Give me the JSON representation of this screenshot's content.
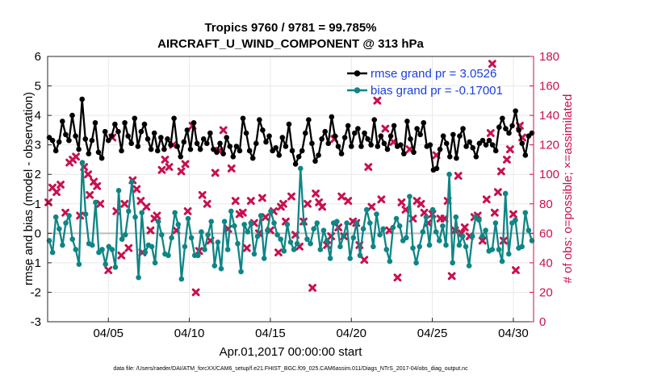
{
  "chart_data": {
    "type": "line",
    "title": "Tropics 9760 / 9781 = 99.785%",
    "subtitle": "AIRCRAFT_U_WIND_COMPONENT @ 313 hPa",
    "xlabel": "Apr.01,2017 00:00:00 start",
    "ylabel": "rmse and bias (model - observation)",
    "ylabel_right": "# of obs: o=possible; ×=assimilated",
    "footnote": "data file: /Users/raeder/DAI/ATM_forcXX/CAM6_setup/f.e21.FHIST_BGC.f09_025.CAM6assim.011/Diags_NTrS_2017-04/obs_diag_output.nc",
    "x_tick_labels": [
      "04/05",
      "04/10",
      "04/15",
      "04/20",
      "04/25",
      "04/30"
    ],
    "x_tick_days": [
      5,
      10,
      15,
      20,
      25,
      30
    ],
    "xlim_days": [
      1.25,
      31.25
    ],
    "ylim": [
      -3,
      6
    ],
    "y_ticks": [
      -3,
      -2,
      -1,
      0,
      1,
      2,
      3,
      4,
      5,
      6
    ],
    "ylim_right": [
      0,
      180
    ],
    "y_ticks_right": [
      0,
      20,
      40,
      60,
      80,
      100,
      120,
      140,
      160,
      180
    ],
    "grid": true,
    "legend_position": "top-right",
    "series": [
      {
        "name": "rmse grand pr = 3.0526",
        "axis": "left",
        "color": "#000000",
        "values": [
          3.25,
          3.15,
          2.8,
          3.1,
          3.8,
          3.35,
          3.15,
          4.0,
          3.3,
          2.85,
          4.55,
          3.2,
          2.7,
          3.15,
          3.75,
          2.75,
          2.55,
          3.45,
          3.15,
          3.3,
          3.7,
          3.45,
          2.8,
          3.75,
          3.3,
          3.05,
          3.9,
          2.95,
          3.45,
          3.7,
          3.2,
          2.85,
          3.4,
          2.8,
          3.25,
          2.85,
          3.2,
          3.0,
          3.9,
          2.95,
          2.6,
          3.1,
          3.5,
          2.85,
          3.75,
          3.05,
          2.85,
          3.2,
          3.05,
          3.4,
          2.85,
          2.75,
          3.05,
          2.7,
          3.25,
          2.95,
          2.6,
          2.95,
          2.8,
          3.9,
          3.4,
          2.8,
          2.55,
          3.05,
          3.85,
          3.5,
          3.1,
          3.3,
          2.8,
          2.9,
          2.65,
          3.25,
          2.95,
          3.7,
          2.8,
          2.35,
          2.6,
          2.8,
          3.4,
          3.85,
          3.05,
          2.45,
          2.65,
          3.2,
          3.45,
          3.05,
          3.95,
          3.3,
          2.95,
          2.7,
          3.25,
          3.65,
          2.95,
          3.4,
          3.55,
          2.95,
          3.4,
          3.2,
          3.0,
          3.85,
          2.95,
          3.3,
          3.05,
          2.85,
          3.3,
          3.65,
          2.95,
          3.0,
          2.7,
          3.8,
          3.2,
          2.75,
          3.55,
          3.35,
          3.75,
          2.95,
          3.0,
          2.15,
          2.2,
          2.85,
          3.3,
          3.05,
          2.6,
          3.35,
          2.55,
          3.3,
          3.55,
          2.95,
          3.1,
          2.9,
          2.6,
          3.05,
          3.15,
          3.0,
          3.15,
          3.0,
          2.8,
          3.6,
          3.9,
          3.55,
          3.4,
          3.65,
          4.15,
          3.5,
          3.05,
          2.65,
          3.3,
          3.4
        ]
      },
      {
        "name": "bias grand pr = -0.17001",
        "axis": "left",
        "color": "#0f8585",
        "values": [
          -0.25,
          -0.65,
          0.55,
          0.15,
          -0.4,
          0.35,
          0.6,
          -0.2,
          -0.55,
          -1.05,
          2.4,
          0.65,
          -0.35,
          -0.4,
          1.05,
          -0.65,
          -0.55,
          -1.05,
          -0.45,
          -0.55,
          -1.15,
          1.45,
          -0.2,
          -0.05,
          0.75,
          1.75,
          0.55,
          -1.5,
          0.7,
          -0.65,
          -0.4,
          -0.45,
          -1.0,
          0.4,
          -0.05,
          -0.7,
          -0.75,
          -0.15,
          0.7,
          0.3,
          -1.55,
          -0.45,
          0.5,
          -0.15,
          -0.75,
          -0.75,
          0.05,
          -0.55,
          -0.05,
          0.4,
          -1.1,
          -0.3,
          -1.2,
          0.4,
          -0.55,
          0.75,
          0.25,
          -0.35,
          -1.3,
          0.3,
          0.05,
          0.35,
          -0.7,
          -0.1,
          0.6,
          -0.85,
          0.1,
          0.75,
          0.35,
          -0.05,
          -0.2,
          -0.6,
          0.3,
          -0.3,
          -0.55,
          -0.35,
          2.2,
          0.35,
          -0.2,
          -0.35,
          0.15,
          0.35,
          -0.55,
          0.1,
          -0.25,
          -0.85,
          0.35,
          0.4,
          -0.45,
          -0.1,
          0.35,
          -0.85,
          -0.15,
          0.35,
          -0.75,
          0.15,
          0.8,
          0.35,
          -0.45,
          0.65,
          -0.05,
          0.15,
          -0.55,
          -0.95,
          0.2,
          0.5,
          0.25,
          -0.25,
          -0.15,
          1.25,
          -0.5,
          -1.0,
          -0.45,
          0.05,
          0.55,
          -0.4,
          0.8,
          0.05,
          -0.25,
          0.25,
          -0.4,
          2.0,
          -1.0,
          0.55,
          -0.4,
          -0.1,
          -0.45,
          -1.1,
          -0.1,
          0.55,
          0.45,
          -0.1,
          0.1,
          -0.6,
          -0.55,
          0.35,
          -0.55,
          -0.95,
          1.35,
          -0.7,
          0.35,
          0.45,
          -0.5,
          -0.45,
          0.7,
          0.1,
          -0.25
        ]
      },
      {
        "name": "obs assimilated",
        "axis": "right",
        "color": "#c8104f",
        "points": [
          [
            1.3,
            81
          ],
          [
            1.55,
            91
          ],
          [
            1.8,
            88
          ],
          [
            2.05,
            93
          ],
          [
            2.35,
            74
          ],
          [
            2.6,
            108
          ],
          [
            2.8,
            110
          ],
          [
            3.0,
            112
          ],
          [
            3.25,
            72
          ],
          [
            3.5,
            105
          ],
          [
            3.75,
            100
          ],
          [
            3.85,
            86
          ],
          [
            4.1,
            95
          ],
          [
            4.3,
            92
          ],
          [
            4.5,
            80
          ],
          [
            5.0,
            35
          ],
          [
            5.25,
            125
          ],
          [
            5.5,
            75
          ],
          [
            5.8,
            45
          ],
          [
            6.0,
            80
          ],
          [
            6.25,
            50
          ],
          [
            6.5,
            96
          ],
          [
            6.75,
            90
          ],
          [
            7.0,
            82
          ],
          [
            7.1,
            47
          ],
          [
            7.35,
            78
          ],
          [
            7.6,
            62
          ],
          [
            7.85,
            70
          ],
          [
            8.0,
            72
          ],
          [
            8.3,
            103
          ],
          [
            8.5,
            110
          ],
          [
            8.75,
            105
          ],
          [
            9.0,
            120
          ],
          [
            9.2,
            62
          ],
          [
            9.5,
            102
          ],
          [
            9.75,
            107
          ],
          [
            9.9,
            75
          ],
          [
            10.2,
            133
          ],
          [
            10.4,
            20
          ],
          [
            10.6,
            48
          ],
          [
            10.8,
            86
          ],
          [
            11.1,
            80
          ],
          [
            11.3,
            55
          ],
          [
            11.6,
            101
          ],
          [
            11.85,
            116
          ],
          [
            12.1,
            130
          ],
          [
            12.4,
            63
          ],
          [
            12.6,
            104
          ],
          [
            12.85,
            82
          ],
          [
            13.1,
            73
          ],
          [
            13.3,
            74
          ],
          [
            13.55,
            50
          ],
          [
            13.8,
            82
          ],
          [
            14.0,
            67
          ],
          [
            14.3,
            60
          ],
          [
            14.5,
            84
          ],
          [
            14.7,
            71
          ],
          [
            15.0,
            62
          ],
          [
            15.2,
            75
          ],
          [
            15.5,
            47
          ],
          [
            15.65,
            78
          ],
          [
            15.8,
            80
          ],
          [
            15.95,
            68
          ],
          [
            16.3,
            85
          ],
          [
            16.55,
            59
          ],
          [
            16.8,
            51
          ],
          [
            17.05,
            68
          ],
          [
            17.3,
            80
          ],
          [
            17.6,
            23
          ],
          [
            17.8,
            87
          ],
          [
            18.0,
            81
          ],
          [
            18.2,
            78
          ],
          [
            18.5,
            52
          ],
          [
            18.75,
            58
          ],
          [
            18.95,
            124
          ],
          [
            19.2,
            64
          ],
          [
            19.4,
            85
          ],
          [
            19.55,
            58
          ],
          [
            19.8,
            82
          ],
          [
            20.1,
            68
          ],
          [
            20.3,
            67
          ],
          [
            20.5,
            52
          ],
          [
            20.8,
            42
          ],
          [
            21.05,
            105
          ],
          [
            21.25,
            78
          ],
          [
            21.6,
            150
          ],
          [
            21.85,
            83
          ],
          [
            22.1,
            131
          ],
          [
            22.35,
            62
          ],
          [
            22.6,
            122
          ],
          [
            22.85,
            30
          ],
          [
            23.1,
            81
          ],
          [
            23.35,
            76
          ],
          [
            23.6,
            117
          ],
          [
            23.8,
            70
          ],
          [
            24.05,
            82
          ],
          [
            24.3,
            80
          ],
          [
            24.5,
            74
          ],
          [
            24.75,
            67
          ],
          [
            25.0,
            73
          ],
          [
            25.25,
            113
          ],
          [
            25.5,
            70
          ],
          [
            25.75,
            70
          ],
          [
            25.95,
            82
          ],
          [
            26.2,
            31
          ],
          [
            26.4,
            62
          ],
          [
            26.6,
            99
          ],
          [
            26.8,
            60
          ],
          [
            27.0,
            64
          ],
          [
            27.3,
            58
          ],
          [
            27.6,
            71
          ],
          [
            27.8,
            72
          ],
          [
            28.1,
            55
          ],
          [
            28.35,
            83
          ],
          [
            28.6,
            128
          ],
          [
            28.7,
            175
          ],
          [
            28.85,
            74
          ],
          [
            29.05,
            88
          ],
          [
            29.25,
            102
          ],
          [
            29.4,
            55
          ],
          [
            29.6,
            110
          ],
          [
            29.8,
            117
          ],
          [
            30.0,
            73
          ],
          [
            30.15,
            35
          ],
          [
            30.4,
            133
          ],
          [
            30.55,
            125
          ]
        ]
      }
    ]
  }
}
